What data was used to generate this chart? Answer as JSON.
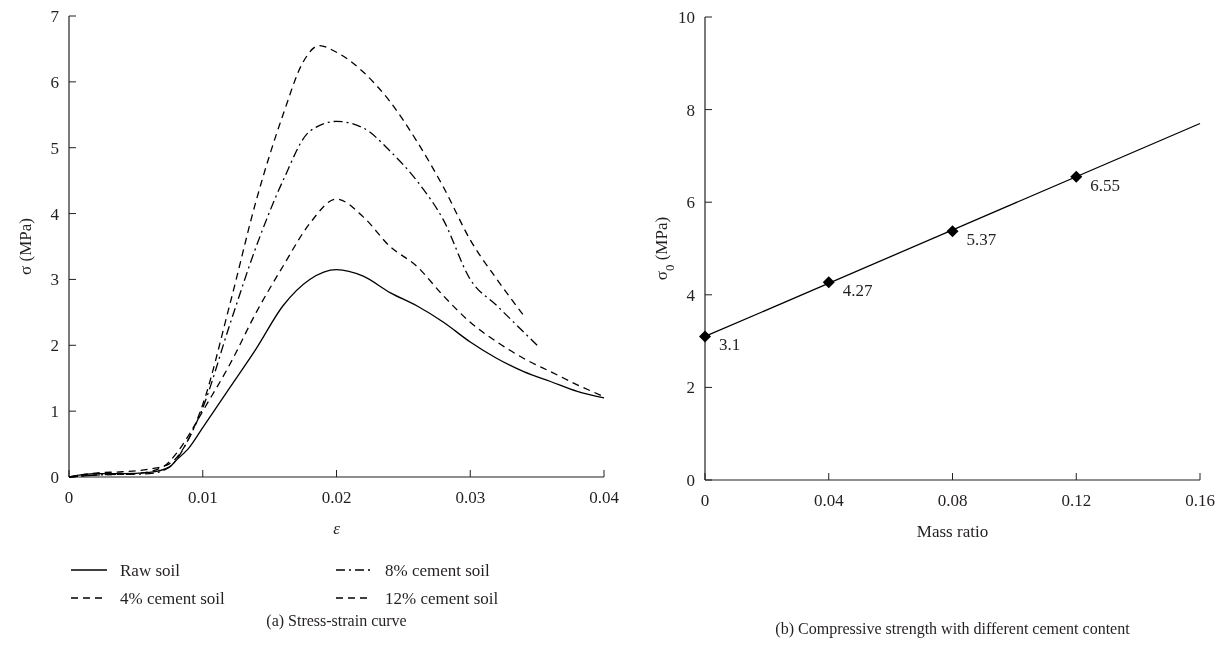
{
  "chart_data": [
    {
      "type": "line",
      "title": "(a)  Stress-strain curve",
      "xlabel": "ε",
      "ylabel": "σ (MPa)",
      "xlim": [
        0,
        0.04
      ],
      "xticks": [
        0,
        0.01,
        0.02,
        0.03,
        0.04
      ],
      "ylim": [
        0,
        7
      ],
      "yticks": [
        0,
        1,
        2,
        3,
        4,
        5,
        6,
        7
      ],
      "legend": "bottom",
      "grid": false,
      "series": [
        {
          "name": "Raw soil",
          "color": "#000000",
          "line_style": "solid",
          "x": [
            0,
            0.002,
            0.004,
            0.006,
            0.0075,
            0.008,
            0.009,
            0.01,
            0.012,
            0.014,
            0.016,
            0.018,
            0.02,
            0.022,
            0.024,
            0.026,
            0.028,
            0.03,
            0.032,
            0.034,
            0.036,
            0.038,
            0.04
          ],
          "values": [
            0,
            0.05,
            0.05,
            0.07,
            0.15,
            0.25,
            0.45,
            0.75,
            1.35,
            1.95,
            2.6,
            3.0,
            3.15,
            3.05,
            2.8,
            2.6,
            2.35,
            2.05,
            1.8,
            1.6,
            1.45,
            1.3,
            1.2
          ]
        },
        {
          "name": "4% cement soil",
          "color": "#000000",
          "line_style": "dashed",
          "x": [
            0,
            0.002,
            0.005,
            0.007,
            0.008,
            0.009,
            0.01,
            0.012,
            0.014,
            0.016,
            0.018,
            0.02,
            0.022,
            0.024,
            0.026,
            0.028,
            0.03,
            0.032,
            0.034,
            0.036,
            0.038,
            0.04
          ],
          "values": [
            0,
            0.03,
            0.05,
            0.15,
            0.35,
            0.65,
            1.0,
            1.7,
            2.5,
            3.2,
            3.85,
            4.22,
            3.95,
            3.5,
            3.2,
            2.75,
            2.35,
            2.05,
            1.8,
            1.6,
            1.4,
            1.22
          ]
        },
        {
          "name": "8% cement soil",
          "color": "#000000",
          "line_style": "dashdot",
          "x": [
            0,
            0.002,
            0.006,
            0.0075,
            0.009,
            0.01,
            0.012,
            0.014,
            0.016,
            0.018,
            0.02,
            0.022,
            0.024,
            0.026,
            0.028,
            0.03,
            0.032,
            0.034,
            0.035
          ],
          "values": [
            0,
            0.03,
            0.05,
            0.15,
            0.6,
            1.05,
            2.3,
            3.5,
            4.5,
            5.25,
            5.4,
            5.3,
            4.95,
            4.5,
            3.9,
            3.0,
            2.6,
            2.2,
            2.0
          ]
        },
        {
          "name": "12% cement soil",
          "color": "#000000",
          "line_style": "dashed",
          "x": [
            0,
            0.002,
            0.004,
            0.006,
            0.0075,
            0.009,
            0.01,
            0.012,
            0.014,
            0.016,
            0.0175,
            0.0187,
            0.02,
            0.022,
            0.024,
            0.026,
            0.028,
            0.03,
            0.032,
            0.034
          ],
          "values": [
            0,
            0.06,
            0.08,
            0.12,
            0.2,
            0.6,
            1.1,
            2.6,
            4.2,
            5.5,
            6.3,
            6.55,
            6.45,
            6.15,
            5.7,
            5.1,
            4.4,
            3.6,
            3.0,
            2.45
          ]
        }
      ]
    },
    {
      "type": "scatter",
      "title": "(b)  Compressive strength with different cement content",
      "xlabel": "Mass ratio",
      "ylabel": "σ$_{0}$ (MPa)",
      "xlim": [
        0,
        0.16
      ],
      "xticks": [
        0,
        0.04,
        0.08,
        0.12,
        0.16
      ],
      "ylim": [
        0,
        10
      ],
      "yticks": [
        0,
        2,
        4,
        6,
        8,
        10
      ],
      "grid": false,
      "series": [
        {
          "type": "line",
          "color": "#000000",
          "line_style": "solid",
          "x": [
            0,
            0.16
          ],
          "values": [
            3.1,
            7.7
          ]
        },
        {
          "type": "scatter",
          "color": "#000000",
          "marker": "diamond",
          "x": [
            0,
            0.04,
            0.08,
            0.12
          ],
          "values": [
            3.1,
            4.27,
            5.37,
            6.55
          ],
          "value_labels": [
            "3.1",
            "4.27",
            "5.37",
            "6.55"
          ]
        }
      ]
    }
  ]
}
